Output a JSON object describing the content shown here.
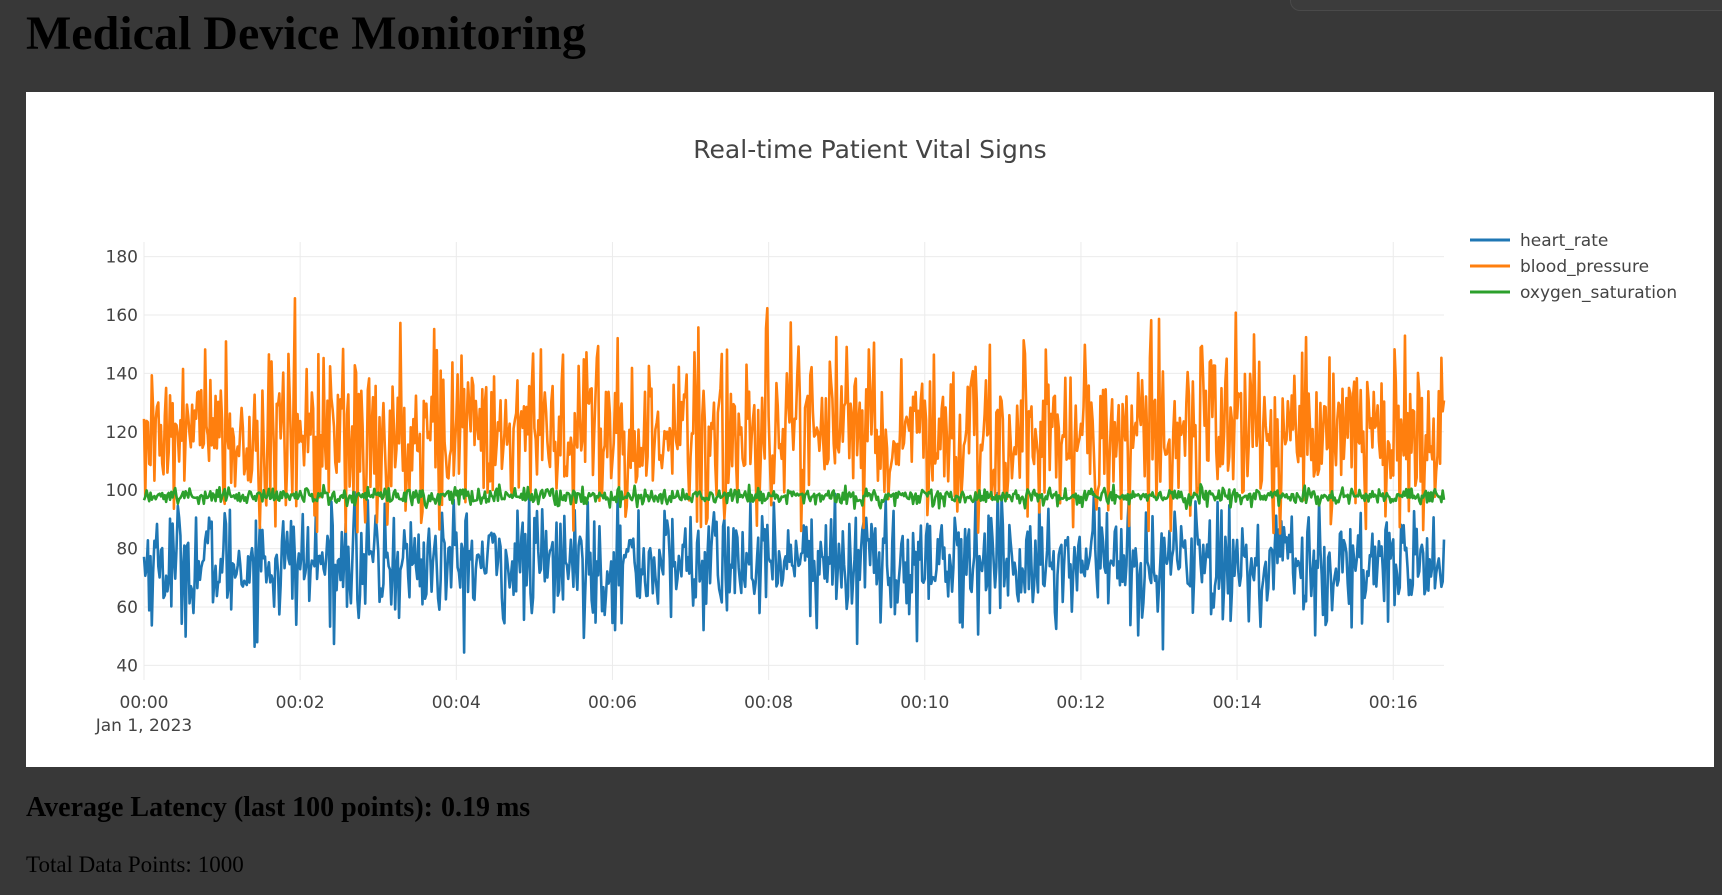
{
  "page": {
    "title": "Medical Device Monitoring",
    "latency_label": "Average Latency (last 100 points):",
    "latency_value": "0.19",
    "latency_unit": "ms",
    "total_label": "Total Data Points:",
    "total_value": "1000"
  },
  "chart_data": {
    "type": "line",
    "title": "Real-time Patient Vital Signs",
    "xlabel": "",
    "ylabel": "",
    "x_start": "2023-01-01 00:00:00",
    "x_interval_seconds": 1,
    "x_count": 1000,
    "xlim": [
      "2023-01-01 00:00:00",
      "2023-01-01 00:16:39"
    ],
    "ylim": [
      35,
      185
    ],
    "x_ticks": [
      "00:00",
      "00:02",
      "00:04",
      "00:06",
      "00:08",
      "00:10",
      "00:12",
      "00:14",
      "00:16"
    ],
    "x_tick_minutes": [
      0,
      2,
      4,
      6,
      8,
      10,
      12,
      14,
      16
    ],
    "x_subtitle": "Jan 1, 2023",
    "y_ticks": [
      40,
      60,
      80,
      100,
      120,
      140,
      160,
      180
    ],
    "grid": true,
    "legend_position": "top-right",
    "series": [
      {
        "name": "heart_rate",
        "color": "#1f77b4",
        "mean": 75,
        "std": 10,
        "min": 41,
        "max": 100
      },
      {
        "name": "blood_pressure",
        "color": "#ff7f0e",
        "mean": 120,
        "std": 15,
        "min": 85,
        "max": 178
      },
      {
        "name": "oxygen_saturation",
        "color": "#2ca02c",
        "mean": 98,
        "std": 1.5,
        "min": 93,
        "max": 106
      }
    ]
  }
}
